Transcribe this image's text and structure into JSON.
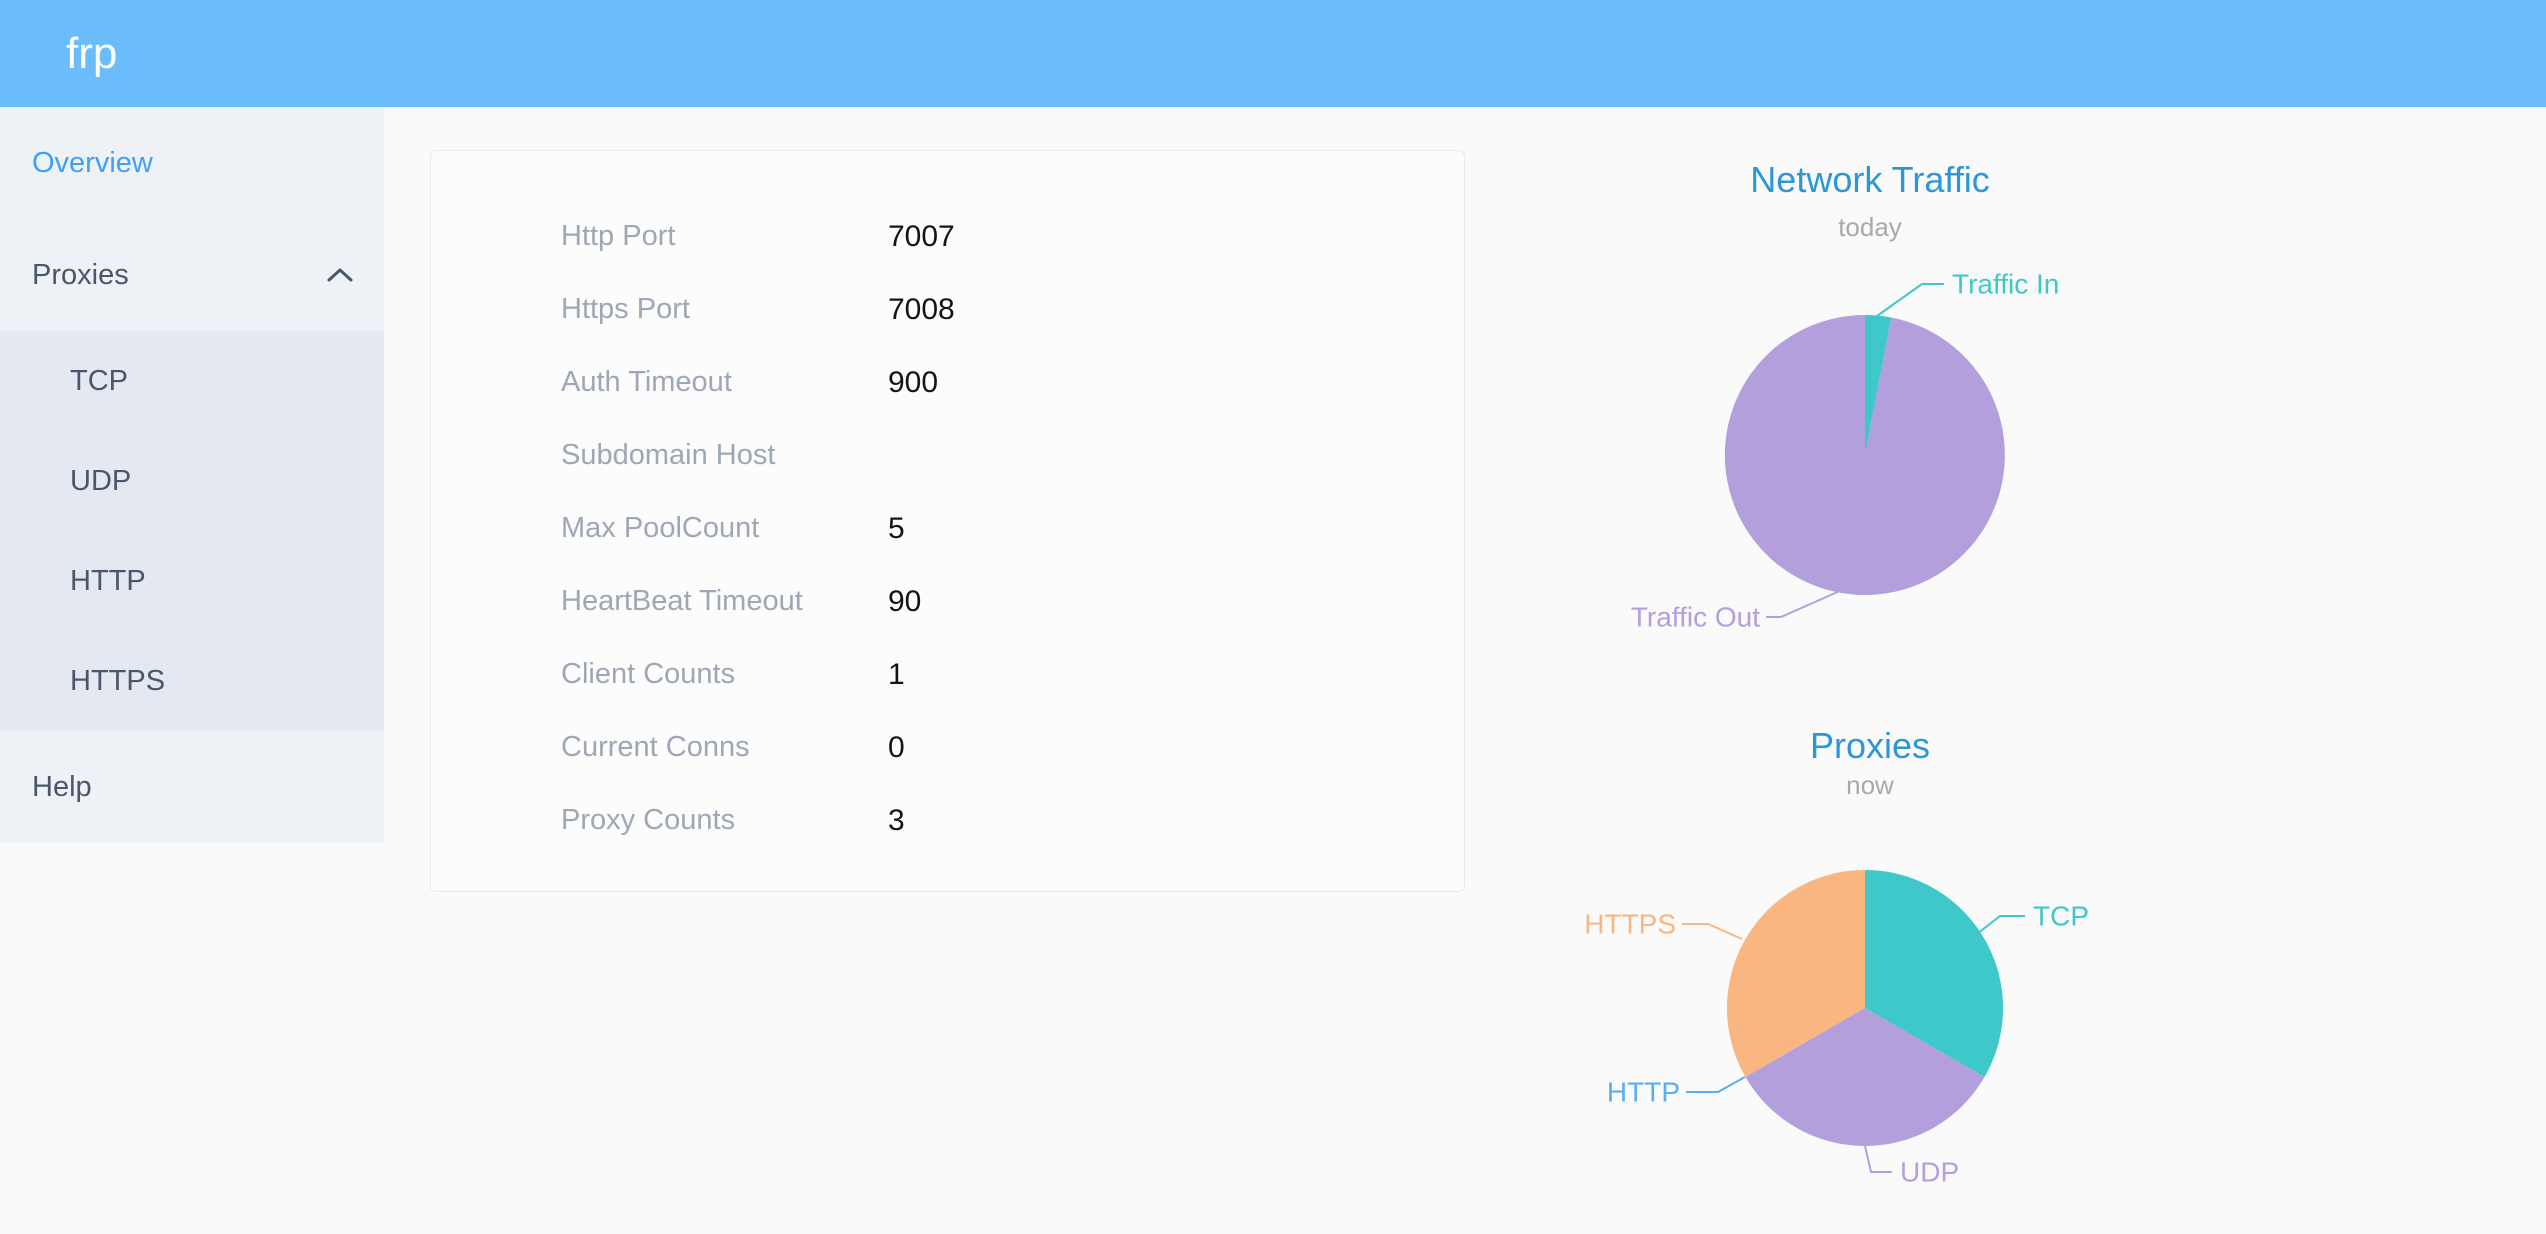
{
  "app": {
    "logo": "frp"
  },
  "colors": {
    "header_bg": "#6abcfa",
    "sidebar_bg": "#eef1f6",
    "submenu_bg": "#e4e8f1",
    "sidebar_text": "#48576a",
    "active_link": "#3ea1f6",
    "chart_title_blue": "#2d96d8",
    "chart_subtitle_gray": "#a9a9a9",
    "card_label_gray": "#9ea7b4",
    "card_value_black": "#141414",
    "teal": "#3fc8ca",
    "purple": "#b29fdc",
    "orange": "#f9b681",
    "blue": "#58aef2"
  },
  "sidebar": {
    "items": [
      {
        "label": "Overview",
        "active": true
      },
      {
        "label": "Proxies",
        "expanded": true,
        "icon": "chevron-up",
        "children": [
          {
            "label": "TCP"
          },
          {
            "label": "UDP"
          },
          {
            "label": "HTTP"
          },
          {
            "label": "HTTPS"
          }
        ]
      },
      {
        "label": "Help"
      }
    ]
  },
  "overview": {
    "rows": [
      {
        "label": "Http Port",
        "value": "7007"
      },
      {
        "label": "Https Port",
        "value": "7008"
      },
      {
        "label": "Auth Timeout",
        "value": "900"
      },
      {
        "label": "Subdomain Host",
        "value": ""
      },
      {
        "label": "Max PoolCount",
        "value": "5"
      },
      {
        "label": "HeartBeat Timeout",
        "value": "90"
      },
      {
        "label": "Client Counts",
        "value": "1"
      },
      {
        "label": "Current Conns",
        "value": "0"
      },
      {
        "label": "Proxy Counts",
        "value": "3"
      }
    ]
  },
  "chart_data": [
    {
      "type": "pie",
      "title": "Network Traffic",
      "subtitle": "today",
      "legend_position": "callout-labels",
      "note": "slice values are percents estimated from arc angles",
      "series": [
        {
          "name": "Traffic In",
          "value": 3,
          "color": "#3fc8ca"
        },
        {
          "name": "Traffic Out",
          "value": 97,
          "color": "#b29fdc"
        }
      ]
    },
    {
      "type": "pie",
      "title": "Proxies",
      "subtitle": "now",
      "legend_position": "callout-labels",
      "note": "counts by proxy type; totals match Proxy Counts = 3",
      "series": [
        {
          "name": "TCP",
          "value": 1,
          "color": "#3fc8ca"
        },
        {
          "name": "UDP",
          "value": 1,
          "color": "#b29fdc"
        },
        {
          "name": "HTTP",
          "value": 0,
          "color": "#58aef2"
        },
        {
          "name": "HTTPS",
          "value": 1,
          "color": "#f9b681"
        }
      ]
    }
  ]
}
